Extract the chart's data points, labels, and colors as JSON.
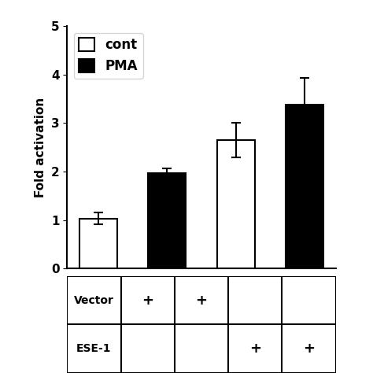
{
  "groups": [
    "Vector\ncont",
    "Vector\nPMA",
    "ESE-1\ncont",
    "ESE-1\nPMA"
  ],
  "values": [
    1.03,
    1.97,
    2.65,
    3.38
  ],
  "errors": [
    0.12,
    0.1,
    0.35,
    0.55
  ],
  "colors": [
    "#ffffff",
    "#000000",
    "#ffffff",
    "#000000"
  ],
  "edgecolors": [
    "#000000",
    "#000000",
    "#000000",
    "#000000"
  ],
  "ylabel": "Fold activation",
  "ylim": [
    0,
    5
  ],
  "yticks": [
    0,
    1,
    2,
    3,
    4,
    5
  ],
  "legend_labels": [
    "cont",
    "PMA"
  ],
  "legend_colors": [
    "#ffffff",
    "#000000"
  ],
  "bar_width": 0.55,
  "table_row1_label": "Vector",
  "table_row2_label": "ESE-1",
  "table_row1_plus": [
    0,
    1
  ],
  "table_row2_plus": [
    2,
    3
  ]
}
